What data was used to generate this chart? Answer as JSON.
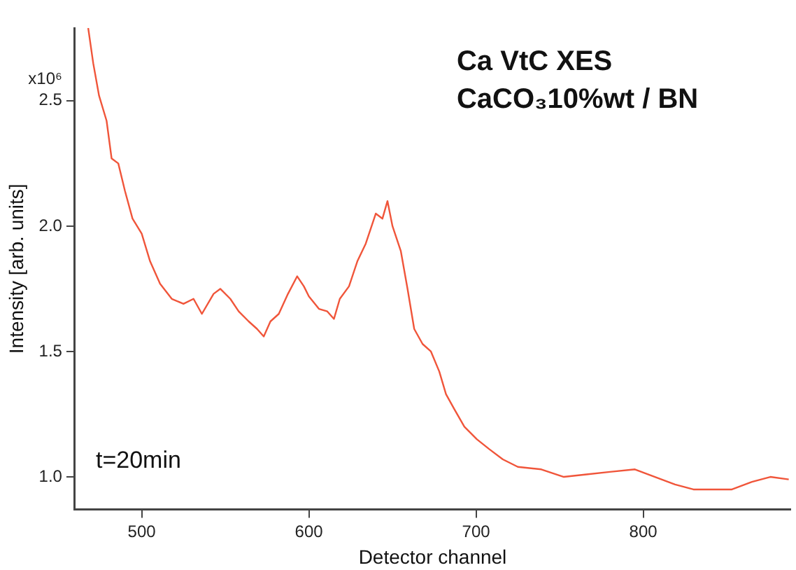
{
  "chart_data": {
    "type": "line",
    "xlabel": "Detector channel",
    "ylabel": "Intensity [arb. units]",
    "annotations": [
      "Ca VtC XES",
      "CaCO₃10%wt / BN",
      "t=20min",
      "x10⁶"
    ],
    "xlim": [
      460,
      888
    ],
    "xticks": [
      500,
      600,
      700,
      800
    ],
    "ylim": [
      0.87,
      2.79
    ],
    "yticks": [
      {
        "value": 1,
        "label": "1.0"
      },
      {
        "value": 1.5,
        "label": "1.5"
      },
      {
        "value": 2,
        "label": "2.0"
      },
      {
        "value": 2.5,
        "label": "2.5"
      }
    ],
    "marker": "none",
    "series": [
      {
        "color": "#f0553a",
        "x": [
          468,
          471,
          474.5,
          479,
          482,
          486,
          490,
          494.5,
          500,
          505,
          511,
          518,
          525,
          531,
          536,
          543,
          547,
          553,
          558,
          564,
          569,
          573,
          577,
          582,
          587.5,
          593,
          597,
          600,
          606,
          611,
          615,
          618.5,
          624,
          629,
          634,
          640,
          644,
          647,
          650,
          655,
          659,
          663,
          668,
          673,
          678,
          682,
          687,
          693,
          700.5,
          708,
          716,
          725,
          739,
          752.5,
          766,
          780,
          795,
          807,
          819,
          830,
          841,
          853,
          865,
          876,
          887
        ],
        "values": [
          2.79,
          2.65,
          2.52,
          2.42,
          2.27,
          2.25,
          2.14,
          2.03,
          1.97,
          1.86,
          1.77,
          1.71,
          1.69,
          1.71,
          1.65,
          1.73,
          1.75,
          1.71,
          1.66,
          1.62,
          1.59,
          1.56,
          1.62,
          1.65,
          1.73,
          1.8,
          1.76,
          1.72,
          1.67,
          1.66,
          1.63,
          1.71,
          1.76,
          1.86,
          1.93,
          2.05,
          2.03,
          2.1,
          2.0,
          1.9,
          1.75,
          1.59,
          1.53,
          1.5,
          1.42,
          1.33,
          1.27,
          1.2,
          1.15,
          1.11,
          1.07,
          1.04,
          1.03,
          1.0,
          1.01,
          1.02,
          1.03,
          1.0,
          0.97,
          0.95,
          0.95,
          0.95,
          0.98,
          1.0,
          0.99
        ]
      }
    ]
  }
}
